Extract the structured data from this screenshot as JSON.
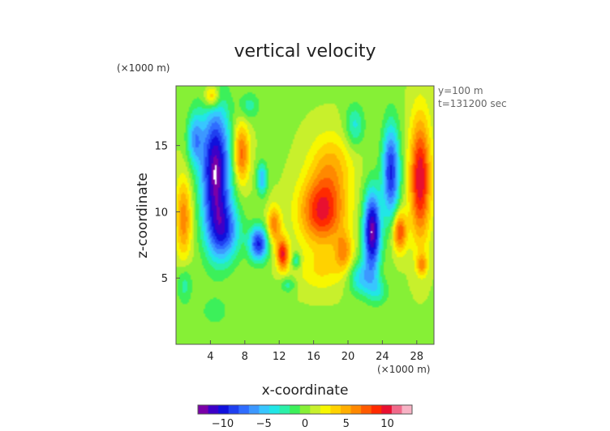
{
  "chart_data": {
    "type": "heatmap",
    "title": "vertical velocity",
    "xlabel": "x-coordinate",
    "ylabel": "z-coordinate",
    "x_unit": "(×1000 m)",
    "y_unit": "(×1000 m)",
    "info_lines": [
      "y=100 m",
      "t=131200 sec"
    ],
    "xlim": [
      0,
      30
    ],
    "ylim": [
      0,
      19.5
    ],
    "xticks": [
      "4",
      "8",
      "12",
      "16",
      "20",
      "24",
      "28"
    ],
    "yticks": [
      "5",
      "10",
      "15"
    ],
    "colorbar": {
      "range": [
        -13,
        13
      ],
      "ticks": [
        "−10",
        "−5",
        "0",
        "5",
        "10"
      ],
      "colors": [
        "#7a00a8",
        "#3d00c8",
        "#1010dc",
        "#1f3ff0",
        "#2f6cff",
        "#3c98ff",
        "#38c6ff",
        "#21e6e6",
        "#2bf0a8",
        "#3cf05a",
        "#86f036",
        "#c8f02c",
        "#f7f700",
        "#ffd200",
        "#ffae00",
        "#ff8800",
        "#ff5a00",
        "#ff2a00",
        "#e81030",
        "#f06a8a",
        "#f7b2c4"
      ]
    },
    "background_value": 0.5,
    "features": [
      {
        "x": 4.6,
        "z": 13.0,
        "sx": 1.7,
        "sz": 5.0,
        "value": -13
      },
      {
        "x": 5.7,
        "z": 8.5,
        "sx": 1.8,
        "sz": 2.2,
        "value": -7
      },
      {
        "x": 2.2,
        "z": 15.5,
        "sx": 0.9,
        "sz": 2.0,
        "value": -6
      },
      {
        "x": 9.6,
        "z": 7.6,
        "sx": 1.1,
        "sz": 1.3,
        "value": -10
      },
      {
        "x": 10.0,
        "z": 12.5,
        "sx": 0.6,
        "sz": 1.2,
        "value": -6
      },
      {
        "x": 4.2,
        "z": 18.7,
        "sx": 0.9,
        "sz": 0.9,
        "value": 6
      },
      {
        "x": 7.6,
        "z": 14.4,
        "sx": 0.9,
        "sz": 2.2,
        "value": 7
      },
      {
        "x": 0.9,
        "z": 9.5,
        "sx": 0.9,
        "sz": 3.0,
        "value": 6
      },
      {
        "x": 12.4,
        "z": 6.8,
        "sx": 0.7,
        "sz": 1.2,
        "value": 9
      },
      {
        "x": 11.4,
        "z": 9.0,
        "sx": 0.8,
        "sz": 1.4,
        "value": 6
      },
      {
        "x": 17.0,
        "z": 10.0,
        "sx": 2.6,
        "sz": 2.5,
        "value": 9
      },
      {
        "x": 18.0,
        "z": 13.5,
        "sx": 2.5,
        "sz": 2.5,
        "value": 4
      },
      {
        "x": 17.0,
        "z": 5.5,
        "sx": 3.0,
        "sz": 1.5,
        "value": 2.5
      },
      {
        "x": 19.5,
        "z": 7.0,
        "sx": 1.0,
        "sz": 1.4,
        "value": 5
      },
      {
        "x": 14.0,
        "z": 6.3,
        "sx": 0.5,
        "sz": 0.6,
        "value": -4
      },
      {
        "x": 13.0,
        "z": 4.5,
        "sx": 0.9,
        "sz": 0.6,
        "value": -3
      },
      {
        "x": 22.8,
        "z": 8.5,
        "sx": 1.0,
        "sz": 3.0,
        "value": -13
      },
      {
        "x": 25.0,
        "z": 13.0,
        "sx": 1.0,
        "sz": 3.5,
        "value": -10
      },
      {
        "x": 21.5,
        "z": 5.0,
        "sx": 1.5,
        "sz": 1.3,
        "value": -5
      },
      {
        "x": 20.8,
        "z": 16.5,
        "sx": 1.1,
        "sz": 1.6,
        "value": -4
      },
      {
        "x": 28.4,
        "z": 12.5,
        "sx": 1.2,
        "sz": 4.5,
        "value": 10
      },
      {
        "x": 26.0,
        "z": 8.5,
        "sx": 0.8,
        "sz": 1.5,
        "value": 8
      },
      {
        "x": 1.0,
        "z": 4.5,
        "sx": 0.9,
        "sz": 1.5,
        "value": -3
      },
      {
        "x": 4.5,
        "z": 2.5,
        "sx": 1.5,
        "sz": 1.0,
        "value": -2
      },
      {
        "x": 23.5,
        "z": 4.0,
        "sx": 1.2,
        "sz": 1.0,
        "value": -3
      },
      {
        "x": 28.6,
        "z": 6.0,
        "sx": 0.6,
        "sz": 0.8,
        "value": 5
      },
      {
        "x": 8.5,
        "z": 18.0,
        "sx": 1.2,
        "sz": 1.0,
        "value": -3
      }
    ]
  }
}
